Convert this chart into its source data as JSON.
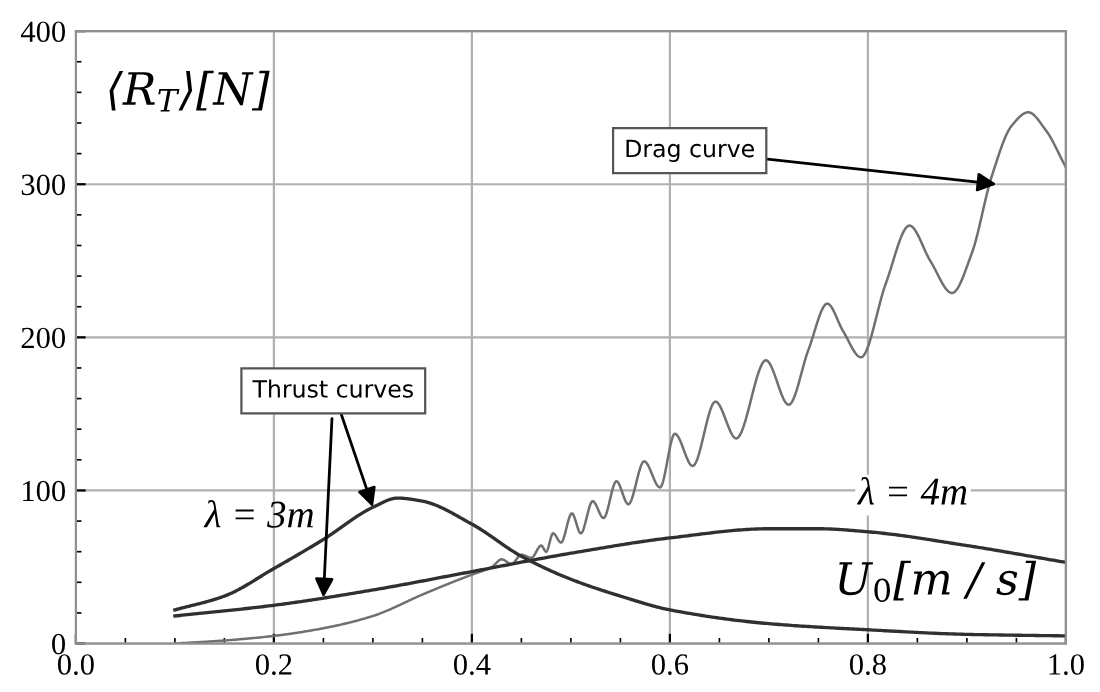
{
  "chart_data": {
    "type": "line",
    "xlabel": "U$_{0}$[m / s]",
    "ylabel": "⟨R$_{T}$⟩[N]",
    "xlim": [
      0.0,
      1.0
    ],
    "xticks": [
      {
        "value": 0.0,
        "label": "0.0"
      },
      {
        "value": 0.2,
        "label": "0.2"
      },
      {
        "value": 0.4,
        "label": "0.4"
      },
      {
        "value": 0.6,
        "label": "0.6"
      },
      {
        "value": 0.8,
        "label": "0.8"
      },
      {
        "value": 1.0,
        "label": "1.0"
      }
    ],
    "ylim": [
      0,
      400
    ],
    "yticks": [
      0,
      100,
      200,
      300,
      400
    ],
    "grid": true,
    "legend": false,
    "marker": "none",
    "line_style": "solid",
    "series": [
      {
        "color": "#707070",
        "x": [
          0.1,
          0.15,
          0.2,
          0.25,
          0.3,
          0.35,
          0.38,
          0.4,
          0.42,
          0.43,
          0.44,
          0.45,
          0.46,
          0.47,
          0.475,
          0.482,
          0.49,
          0.501,
          0.51,
          0.522,
          0.533,
          0.546,
          0.558,
          0.574,
          0.59,
          0.605,
          0.623,
          0.646,
          0.667,
          0.697,
          0.72,
          0.74,
          0.759,
          0.775,
          0.793,
          0.818,
          0.842,
          0.863,
          0.885,
          0.905,
          0.925,
          0.945,
          0.962,
          0.98,
          1.0
        ],
        "values": [
          0,
          2,
          5,
          10,
          18,
          32,
          40,
          45,
          50,
          55,
          52,
          58,
          56,
          64,
          60,
          72,
          66,
          85,
          72,
          93,
          82,
          106,
          91,
          119,
          102,
          137,
          116,
          158,
          134,
          185,
          156,
          192,
          222,
          204,
          187,
          235,
          273,
          250,
          229,
          255,
          305,
          338,
          347,
          335,
          311
        ]
      },
      {
        "name": "λ = 3m",
        "color": "#303030",
        "x": [
          0.1,
          0.15,
          0.2,
          0.25,
          0.3,
          0.325,
          0.35,
          0.4,
          0.45,
          0.5,
          0.55,
          0.6,
          0.7,
          0.8,
          0.9,
          1.0
        ],
        "values": [
          22,
          31,
          49,
          68,
          89,
          95,
          93,
          78,
          57,
          42,
          31,
          22,
          13,
          9,
          6,
          5
        ]
      },
      {
        "name": "λ = 4m",
        "color": "#303030",
        "x": [
          0.1,
          0.2,
          0.3,
          0.4,
          0.5,
          0.6,
          0.7,
          0.75,
          0.8,
          0.9,
          1.0
        ],
        "values": [
          18,
          25,
          35,
          47,
          59,
          69,
          75,
          75,
          73,
          64,
          53
        ]
      }
    ],
    "annotations": [
      {
        "text": "Drag curve",
        "x": 0.93,
        "y": 300
      },
      {
        "text": "Thrust curves",
        "x": 0.3,
        "y": 89
      }
    ]
  }
}
